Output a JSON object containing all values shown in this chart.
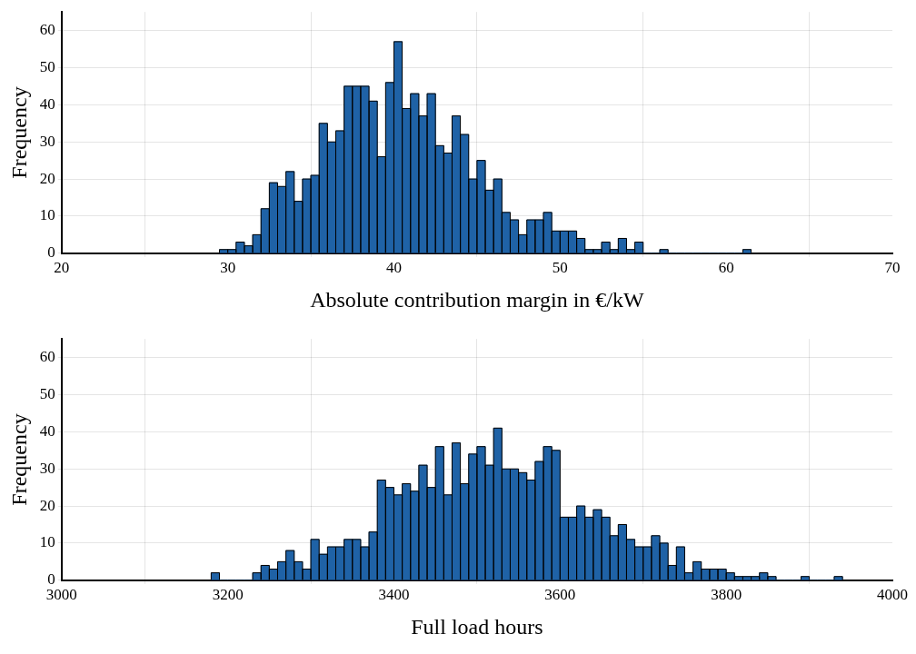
{
  "chart_data": [
    {
      "type": "histogram",
      "xlabel": "Absolute contribution margin in €/kW",
      "ylabel": "Frequency",
      "color": "#1f62a6",
      "bins": [
        29.5,
        30,
        30.5,
        31,
        31.5,
        32,
        32.5,
        33,
        33.5,
        34,
        34.5,
        35,
        35.5,
        36,
        36.5,
        37,
        37.5,
        38,
        38.5,
        39,
        39.5,
        40,
        40.5,
        41,
        41.5,
        42,
        42.5,
        43,
        43.5,
        44,
        44.5,
        45,
        45.5,
        46,
        46.5,
        47,
        47.5,
        48,
        48.5,
        49,
        49.5,
        50,
        50.5,
        51,
        51.5,
        52,
        52.5,
        53,
        53.5,
        54,
        54.5,
        55,
        55.5,
        56,
        56.5,
        57,
        57.5,
        58,
        58.5,
        59,
        59.5,
        60,
        60.5,
        61,
        61.5
      ],
      "values": [
        1,
        1,
        3,
        2,
        5,
        12,
        19,
        18,
        22,
        14,
        20,
        21,
        35,
        30,
        33,
        45,
        45,
        45,
        41,
        26,
        46,
        57,
        39,
        43,
        37,
        43,
        29,
        27,
        37,
        32,
        20,
        25,
        17,
        20,
        11,
        9,
        5,
        9,
        9,
        11,
        6,
        6,
        6,
        4,
        1,
        1,
        3,
        1,
        4,
        1,
        3,
        0,
        0,
        1,
        0,
        0,
        0,
        0,
        0,
        0,
        0,
        0,
        0,
        1
      ],
      "xlim": [
        20,
        70
      ],
      "xticks": [
        20,
        30,
        40,
        50,
        60,
        70
      ],
      "ylim": [
        0,
        65
      ],
      "yticks": [
        0,
        10,
        20,
        30,
        40,
        50,
        60
      ],
      "grid": true
    },
    {
      "type": "histogram",
      "xlabel": "Full load hours",
      "ylabel": "Frequency",
      "color": "#1f62a6",
      "bins": [
        3180,
        3190,
        3200,
        3210,
        3220,
        3230,
        3240,
        3250,
        3260,
        3270,
        3280,
        3290,
        3300,
        3310,
        3320,
        3330,
        3340,
        3350,
        3360,
        3370,
        3380,
        3390,
        3400,
        3410,
        3420,
        3430,
        3440,
        3450,
        3460,
        3470,
        3480,
        3490,
        3500,
        3510,
        3520,
        3530,
        3540,
        3550,
        3560,
        3570,
        3580,
        3590,
        3600,
        3610,
        3620,
        3630,
        3640,
        3650,
        3660,
        3670,
        3680,
        3690,
        3700,
        3710,
        3720,
        3730,
        3740,
        3750,
        3760,
        3770,
        3780,
        3790,
        3800,
        3810,
        3820,
        3830,
        3840,
        3850,
        3860,
        3870,
        3880,
        3890,
        3900,
        3910,
        3920,
        3930,
        3940
      ],
      "values": [
        2,
        0,
        0,
        0,
        0,
        2,
        4,
        3,
        5,
        8,
        5,
        3,
        11,
        7,
        9,
        9,
        11,
        11,
        9,
        13,
        27,
        25,
        23,
        26,
        24,
        31,
        25,
        36,
        23,
        37,
        26,
        34,
        36,
        31,
        41,
        30,
        30,
        29,
        27,
        32,
        36,
        35,
        17,
        17,
        20,
        17,
        19,
        17,
        12,
        15,
        11,
        9,
        9,
        12,
        10,
        4,
        9,
        2,
        5,
        3,
        3,
        3,
        2,
        1,
        1,
        1,
        2,
        1,
        0,
        0,
        0,
        1,
        0,
        0,
        0,
        1
      ],
      "xlim": [
        3000,
        4000
      ],
      "xticks": [
        3000,
        3200,
        3400,
        3600,
        3800,
        4000
      ],
      "ylim": [
        0,
        65
      ],
      "yticks": [
        0,
        10,
        20,
        30,
        40,
        50,
        60
      ],
      "grid": true
    }
  ]
}
